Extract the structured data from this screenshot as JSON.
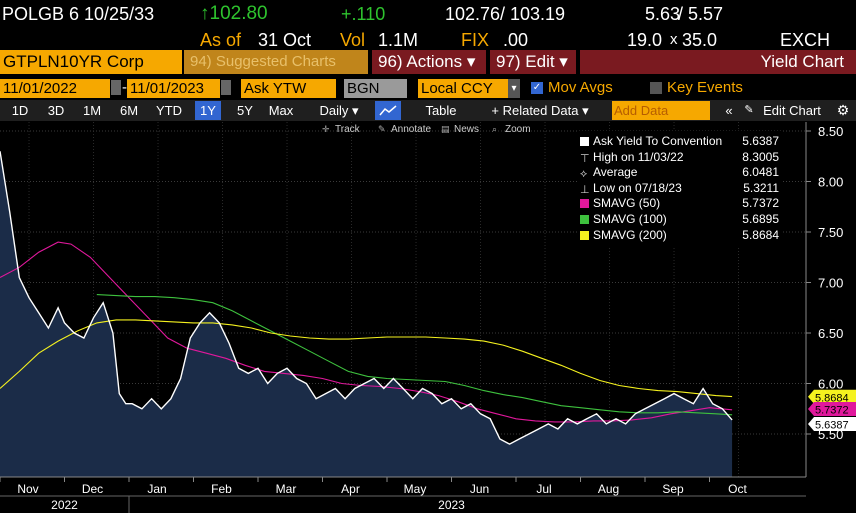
{
  "header": {
    "ticker": "POLGB 6 10/25/33",
    "price": "↑102.80",
    "change": "+.110",
    "bid": "102.76",
    "ask": "103.19",
    "yield_bid": "5.63",
    "yield_ask": "5.57",
    "asof_label": "As of",
    "asof_date": "31 Oct",
    "vol_label": "Vol",
    "vol": "1.1M",
    "fix_label": "FIX",
    "fix": ".00",
    "size_bid": "19.0",
    "size_ask": "35.0",
    "exch": "EXCH"
  },
  "toolbar": {
    "security": "GTPLN10YR Corp",
    "suggested": "94) Suggested Charts",
    "actions": "96) Actions ▾",
    "edit": "97) Edit ▾",
    "title": "Yield Chart"
  },
  "controls": {
    "date_from": "11/01/2022",
    "date_to": "11/01/2023",
    "field": "Ask YTW",
    "source": "BGN",
    "currency": "Local CCY",
    "mov_avgs": "Mov Avgs",
    "key_events": "Key Events"
  },
  "range_bar": {
    "periods": [
      "1D",
      "3D",
      "1M",
      "6M",
      "YTD",
      "1Y",
      "5Y",
      "Max"
    ],
    "selected": "1Y",
    "frequency": "Daily ▾",
    "table": "Table",
    "related": "+ Related Data ▾",
    "add_data": "Add Data",
    "edit_chart": "Edit Chart"
  },
  "tools": [
    "Track",
    "Annotate",
    "News",
    "Zoom"
  ],
  "legend": [
    {
      "label": "Ask Yield To Convention",
      "value": "5.6387",
      "color": "#ffffff",
      "kind": "box"
    },
    {
      "label": "High on 11/03/22",
      "value": "8.3005",
      "color": "#cccccc",
      "kind": "high"
    },
    {
      "label": "Average",
      "value": "6.0481",
      "color": "#cccccc",
      "kind": "avg"
    },
    {
      "label": "Low on 07/18/23",
      "value": "5.3211",
      "color": "#cccccc",
      "kind": "low"
    },
    {
      "label": "SMAVG (50)",
      "value": "5.7372",
      "color": "#e0189c",
      "kind": "box"
    },
    {
      "label": "SMAVG (100)",
      "value": "5.6895",
      "color": "#3ec13e",
      "kind": "box"
    },
    {
      "label": "SMAVG (200)",
      "value": "5.8684",
      "color": "#f5f21f",
      "kind": "box"
    }
  ],
  "chart_data": {
    "type": "line",
    "ylim": [
      5.0,
      8.6
    ],
    "yticks": [
      5.5,
      6.0,
      6.5,
      7.0,
      7.5,
      8.0,
      8.5
    ],
    "ytick_labels": [
      "5.50",
      "6.00",
      "6.50",
      "7.00",
      "7.50",
      "8.00",
      "8.50"
    ],
    "x_months": [
      "Nov",
      "Dec",
      "Jan",
      "Feb",
      "Mar",
      "Apr",
      "May",
      "Jun",
      "Jul",
      "Aug",
      "Sep",
      "Oct"
    ],
    "x_years": [
      "2022",
      "2023"
    ],
    "month_index": [
      0,
      1,
      2,
      3,
      4,
      5,
      6,
      7,
      8,
      9,
      10,
      11
    ],
    "series": [
      {
        "name": "Ask Yield To Convention",
        "color": "#ffffff",
        "fill": "#1b2c48",
        "points": [
          [
            0,
            8.3
          ],
          [
            0.15,
            7.7
          ],
          [
            0.3,
            7.05
          ],
          [
            0.45,
            6.85
          ],
          [
            0.6,
            6.7
          ],
          [
            0.75,
            6.55
          ],
          [
            0.9,
            6.75
          ],
          [
            1.0,
            6.6
          ],
          [
            1.15,
            6.5
          ],
          [
            1.3,
            6.45
          ],
          [
            1.45,
            6.65
          ],
          [
            1.6,
            6.8
          ],
          [
            1.75,
            6.5
          ],
          [
            1.85,
            5.9
          ],
          [
            1.95,
            5.8
          ],
          [
            2.05,
            5.8
          ],
          [
            2.2,
            5.75
          ],
          [
            2.35,
            5.85
          ],
          [
            2.5,
            5.75
          ],
          [
            2.65,
            5.85
          ],
          [
            2.8,
            6.05
          ],
          [
            2.95,
            6.45
          ],
          [
            3.1,
            6.6
          ],
          [
            3.25,
            6.7
          ],
          [
            3.4,
            6.6
          ],
          [
            3.55,
            6.4
          ],
          [
            3.7,
            6.15
          ],
          [
            3.85,
            6.1
          ],
          [
            4.0,
            6.15
          ],
          [
            4.15,
            6.0
          ],
          [
            4.3,
            6.1
          ],
          [
            4.45,
            6.15
          ],
          [
            4.6,
            6.05
          ],
          [
            4.75,
            6.0
          ],
          [
            4.9,
            5.85
          ],
          [
            5.05,
            5.9
          ],
          [
            5.2,
            5.95
          ],
          [
            5.35,
            5.85
          ],
          [
            5.5,
            5.95
          ],
          [
            5.65,
            6.0
          ],
          [
            5.8,
            6.05
          ],
          [
            5.95,
            5.95
          ],
          [
            6.1,
            6.05
          ],
          [
            6.25,
            5.95
          ],
          [
            6.4,
            5.85
          ],
          [
            6.55,
            5.95
          ],
          [
            6.7,
            5.9
          ],
          [
            6.85,
            5.8
          ],
          [
            7.0,
            5.85
          ],
          [
            7.15,
            5.75
          ],
          [
            7.3,
            5.8
          ],
          [
            7.45,
            5.7
          ],
          [
            7.6,
            5.65
          ],
          [
            7.75,
            5.45
          ],
          [
            7.9,
            5.4
          ],
          [
            8.05,
            5.45
          ],
          [
            8.2,
            5.5
          ],
          [
            8.35,
            5.55
          ],
          [
            8.5,
            5.6
          ],
          [
            8.65,
            5.55
          ],
          [
            8.8,
            5.65
          ],
          [
            8.95,
            5.6
          ],
          [
            9.1,
            5.65
          ],
          [
            9.25,
            5.7
          ],
          [
            9.4,
            5.6
          ],
          [
            9.55,
            5.65
          ],
          [
            9.7,
            5.6
          ],
          [
            9.85,
            5.7
          ],
          [
            10.0,
            5.75
          ],
          [
            10.15,
            5.8
          ],
          [
            10.3,
            5.85
          ],
          [
            10.45,
            5.9
          ],
          [
            10.6,
            5.85
          ],
          [
            10.75,
            5.8
          ],
          [
            10.9,
            5.95
          ],
          [
            11.05,
            5.8
          ],
          [
            11.2,
            5.75
          ],
          [
            11.35,
            5.64
          ]
        ]
      },
      {
        "name": "SMAVG (50)",
        "color": "#e0189c",
        "points": [
          [
            0,
            7.05
          ],
          [
            0.3,
            7.15
          ],
          [
            0.6,
            7.3
          ],
          [
            0.9,
            7.4
          ],
          [
            1.1,
            7.38
          ],
          [
            1.4,
            7.25
          ],
          [
            1.7,
            7.05
          ],
          [
            2.0,
            6.85
          ],
          [
            2.3,
            6.65
          ],
          [
            2.6,
            6.45
          ],
          [
            2.9,
            6.35
          ],
          [
            3.2,
            6.3
          ],
          [
            3.5,
            6.25
          ],
          [
            3.8,
            6.18
          ],
          [
            4.1,
            6.12
          ],
          [
            4.4,
            6.1
          ],
          [
            4.7,
            6.08
          ],
          [
            5.0,
            6.05
          ],
          [
            5.3,
            6.0
          ],
          [
            5.6,
            5.98
          ],
          [
            5.9,
            5.97
          ],
          [
            6.2,
            5.95
          ],
          [
            6.5,
            5.92
          ],
          [
            6.8,
            5.88
          ],
          [
            7.1,
            5.82
          ],
          [
            7.4,
            5.75
          ],
          [
            7.7,
            5.7
          ],
          [
            8.0,
            5.65
          ],
          [
            8.3,
            5.63
          ],
          [
            8.6,
            5.62
          ],
          [
            8.9,
            5.62
          ],
          [
            9.2,
            5.63
          ],
          [
            9.5,
            5.63
          ],
          [
            9.8,
            5.64
          ],
          [
            10.1,
            5.66
          ],
          [
            10.4,
            5.7
          ],
          [
            10.7,
            5.73
          ],
          [
            11.0,
            5.76
          ],
          [
            11.35,
            5.74
          ]
        ]
      },
      {
        "name": "SMAVG (100)",
        "color": "#3ec13e",
        "points": [
          [
            1.5,
            6.88
          ],
          [
            1.8,
            6.87
          ],
          [
            2.1,
            6.86
          ],
          [
            2.4,
            6.86
          ],
          [
            2.7,
            6.85
          ],
          [
            3.0,
            6.83
          ],
          [
            3.3,
            6.8
          ],
          [
            3.6,
            6.72
          ],
          [
            3.9,
            6.62
          ],
          [
            4.2,
            6.52
          ],
          [
            4.5,
            6.42
          ],
          [
            4.8,
            6.32
          ],
          [
            5.1,
            6.22
          ],
          [
            5.4,
            6.12
          ],
          [
            5.7,
            6.07
          ],
          [
            6.0,
            6.05
          ],
          [
            6.3,
            6.04
          ],
          [
            6.6,
            6.03
          ],
          [
            6.9,
            6.02
          ],
          [
            7.2,
            5.98
          ],
          [
            7.5,
            5.93
          ],
          [
            7.8,
            5.89
          ],
          [
            8.1,
            5.86
          ],
          [
            8.4,
            5.82
          ],
          [
            8.7,
            5.78
          ],
          [
            9.0,
            5.76
          ],
          [
            9.3,
            5.74
          ],
          [
            9.6,
            5.72
          ],
          [
            9.9,
            5.71
          ],
          [
            10.2,
            5.71
          ],
          [
            10.5,
            5.72
          ],
          [
            10.8,
            5.71
          ],
          [
            11.1,
            5.7
          ],
          [
            11.35,
            5.69
          ]
        ]
      },
      {
        "name": "SMAVG (200)",
        "color": "#f5f21f",
        "points": [
          [
            0,
            5.95
          ],
          [
            0.3,
            6.12
          ],
          [
            0.6,
            6.3
          ],
          [
            0.9,
            6.42
          ],
          [
            1.2,
            6.52
          ],
          [
            1.5,
            6.6
          ],
          [
            1.8,
            6.63
          ],
          [
            2.1,
            6.63
          ],
          [
            2.4,
            6.62
          ],
          [
            2.7,
            6.61
          ],
          [
            3.0,
            6.6
          ],
          [
            3.3,
            6.6
          ],
          [
            3.6,
            6.58
          ],
          [
            3.9,
            6.55
          ],
          [
            4.2,
            6.5
          ],
          [
            4.5,
            6.47
          ],
          [
            4.8,
            6.45
          ],
          [
            5.1,
            6.44
          ],
          [
            5.4,
            6.44
          ],
          [
            5.7,
            6.45
          ],
          [
            6.0,
            6.46
          ],
          [
            6.3,
            6.46
          ],
          [
            6.6,
            6.46
          ],
          [
            6.9,
            6.45
          ],
          [
            7.2,
            6.44
          ],
          [
            7.5,
            6.42
          ],
          [
            7.8,
            6.38
          ],
          [
            8.1,
            6.32
          ],
          [
            8.4,
            6.25
          ],
          [
            8.7,
            6.18
          ],
          [
            9.0,
            6.1
          ],
          [
            9.3,
            6.03
          ],
          [
            9.6,
            5.98
          ],
          [
            9.9,
            5.95
          ],
          [
            10.2,
            5.93
          ],
          [
            10.5,
            5.92
          ],
          [
            10.8,
            5.9
          ],
          [
            11.1,
            5.88
          ],
          [
            11.35,
            5.87
          ]
        ]
      }
    ],
    "last_values": [
      {
        "label": "5.8684",
        "color": "#f5f21f",
        "y": 5.8684
      },
      {
        "label": "5.7372",
        "color": "#e0189c",
        "y": 5.7372
      },
      {
        "label": "5.6387",
        "color": "#ffffff",
        "y": 5.6387
      }
    ]
  }
}
